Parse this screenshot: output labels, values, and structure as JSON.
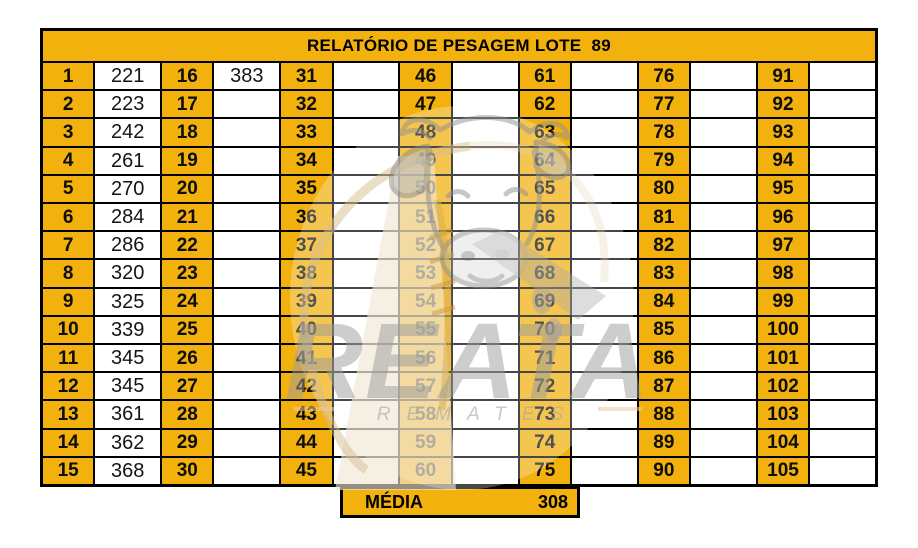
{
  "title": "RELATÓRIO DE PESAGEM LOTE  89",
  "grid": {
    "rows": 15,
    "cols": 7,
    "entries": [
      {
        "n": 1,
        "w": "221"
      },
      {
        "n": 2,
        "w": "223"
      },
      {
        "n": 3,
        "w": "242"
      },
      {
        "n": 4,
        "w": "261"
      },
      {
        "n": 5,
        "w": "270"
      },
      {
        "n": 6,
        "w": "284"
      },
      {
        "n": 7,
        "w": "286"
      },
      {
        "n": 8,
        "w": "320"
      },
      {
        "n": 9,
        "w": "325"
      },
      {
        "n": 10,
        "w": "339"
      },
      {
        "n": 11,
        "w": "345"
      },
      {
        "n": 12,
        "w": "345"
      },
      {
        "n": 13,
        "w": "361"
      },
      {
        "n": 14,
        "w": "362"
      },
      {
        "n": 15,
        "w": "368"
      },
      {
        "n": 16,
        "w": "383"
      },
      {
        "n": 17,
        "w": ""
      },
      {
        "n": 18,
        "w": ""
      },
      {
        "n": 19,
        "w": ""
      },
      {
        "n": 20,
        "w": ""
      },
      {
        "n": 21,
        "w": ""
      },
      {
        "n": 22,
        "w": ""
      },
      {
        "n": 23,
        "w": ""
      },
      {
        "n": 24,
        "w": ""
      },
      {
        "n": 25,
        "w": ""
      },
      {
        "n": 26,
        "w": ""
      },
      {
        "n": 27,
        "w": ""
      },
      {
        "n": 28,
        "w": ""
      },
      {
        "n": 29,
        "w": ""
      },
      {
        "n": 30,
        "w": ""
      },
      {
        "n": 31,
        "w": ""
      },
      {
        "n": 32,
        "w": ""
      },
      {
        "n": 33,
        "w": ""
      },
      {
        "n": 34,
        "w": ""
      },
      {
        "n": 35,
        "w": ""
      },
      {
        "n": 36,
        "w": ""
      },
      {
        "n": 37,
        "w": ""
      },
      {
        "n": 38,
        "w": ""
      },
      {
        "n": 39,
        "w": ""
      },
      {
        "n": 40,
        "w": ""
      },
      {
        "n": 41,
        "w": ""
      },
      {
        "n": 42,
        "w": ""
      },
      {
        "n": 43,
        "w": ""
      },
      {
        "n": 44,
        "w": ""
      },
      {
        "n": 45,
        "w": ""
      },
      {
        "n": 46,
        "w": ""
      },
      {
        "n": 47,
        "w": ""
      },
      {
        "n": 48,
        "w": ""
      },
      {
        "n": 49,
        "w": ""
      },
      {
        "n": 50,
        "w": ""
      },
      {
        "n": 51,
        "w": ""
      },
      {
        "n": 52,
        "w": ""
      },
      {
        "n": 53,
        "w": ""
      },
      {
        "n": 54,
        "w": ""
      },
      {
        "n": 55,
        "w": ""
      },
      {
        "n": 56,
        "w": ""
      },
      {
        "n": 57,
        "w": ""
      },
      {
        "n": 58,
        "w": ""
      },
      {
        "n": 59,
        "w": ""
      },
      {
        "n": 60,
        "w": ""
      },
      {
        "n": 61,
        "w": ""
      },
      {
        "n": 62,
        "w": ""
      },
      {
        "n": 63,
        "w": ""
      },
      {
        "n": 64,
        "w": ""
      },
      {
        "n": 65,
        "w": ""
      },
      {
        "n": 66,
        "w": ""
      },
      {
        "n": 67,
        "w": ""
      },
      {
        "n": 68,
        "w": ""
      },
      {
        "n": 69,
        "w": ""
      },
      {
        "n": 70,
        "w": ""
      },
      {
        "n": 71,
        "w": ""
      },
      {
        "n": 72,
        "w": ""
      },
      {
        "n": 73,
        "w": ""
      },
      {
        "n": 74,
        "w": ""
      },
      {
        "n": 75,
        "w": ""
      },
      {
        "n": 76,
        "w": ""
      },
      {
        "n": 77,
        "w": ""
      },
      {
        "n": 78,
        "w": ""
      },
      {
        "n": 79,
        "w": ""
      },
      {
        "n": 80,
        "w": ""
      },
      {
        "n": 81,
        "w": ""
      },
      {
        "n": 82,
        "w": ""
      },
      {
        "n": 83,
        "w": ""
      },
      {
        "n": 84,
        "w": ""
      },
      {
        "n": 85,
        "w": ""
      },
      {
        "n": 86,
        "w": ""
      },
      {
        "n": 87,
        "w": ""
      },
      {
        "n": 88,
        "w": ""
      },
      {
        "n": 89,
        "w": ""
      },
      {
        "n": 90,
        "w": ""
      },
      {
        "n": 91,
        "w": ""
      },
      {
        "n": 92,
        "w": ""
      },
      {
        "n": 93,
        "w": ""
      },
      {
        "n": 94,
        "w": ""
      },
      {
        "n": 95,
        "w": ""
      },
      {
        "n": 96,
        "w": ""
      },
      {
        "n": 97,
        "w": ""
      },
      {
        "n": 98,
        "w": ""
      },
      {
        "n": 99,
        "w": ""
      },
      {
        "n": 100,
        "w": ""
      },
      {
        "n": 101,
        "w": ""
      },
      {
        "n": 102,
        "w": ""
      },
      {
        "n": 103,
        "w": ""
      },
      {
        "n": 104,
        "w": ""
      },
      {
        "n": 105,
        "w": ""
      }
    ]
  },
  "media": {
    "label": "MÉDIA",
    "value": "308"
  },
  "watermark": {
    "brand": "REATA",
    "subtitle": "REMATES"
  },
  "colors": {
    "accent_orange": "#F2B10C",
    "border_black": "#000000",
    "cell_white": "#FFFFFF",
    "watermark_gray": "#9C9C9C",
    "rope_tan": "#D8BD8F"
  }
}
